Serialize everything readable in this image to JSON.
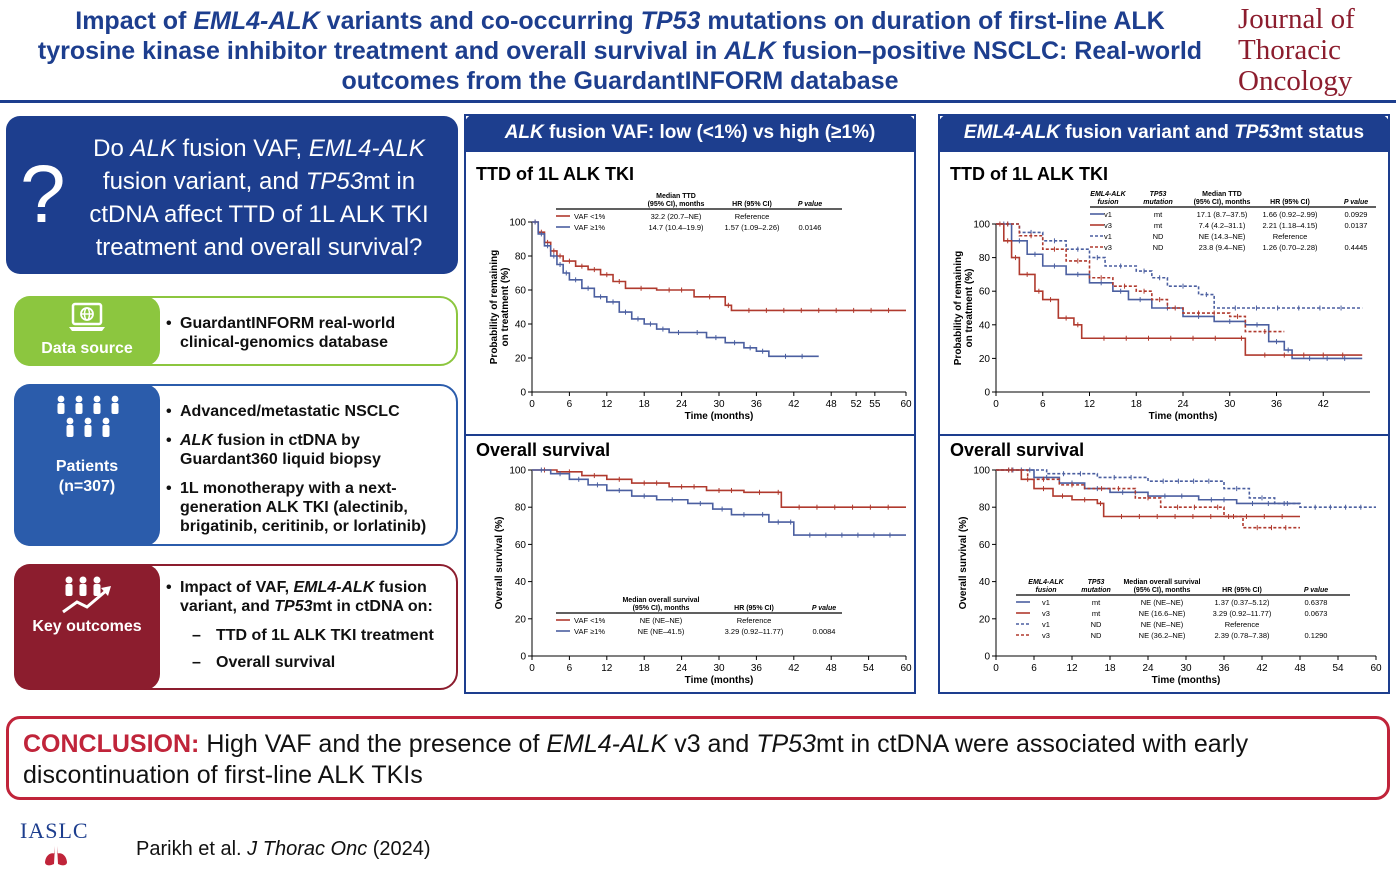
{
  "header": {
    "title_html": "Impact of <i>EML4-ALK</i> variants and co-occurring <i>TP53</i> mutations on duration of first-line ALK tyrosine kinase inhibitor treatment and overall survival in <i>ALK</i> fusion–positive NSCLC: Real-world outcomes from the GuardantINFORM database",
    "journal_lines": [
      "Journal of",
      "Thoracic",
      "Oncology"
    ]
  },
  "question": {
    "mark": "?",
    "text_html": "Do <i>ALK</i> fusion VAF, <i>EML4-ALK</i> fusion variant, and <i>TP53</i>mt in ctDNA affect TTD of 1L ALK TKI treatment and overall survival?"
  },
  "data_source": {
    "label": "Data source",
    "icon": "laptop-globe-icon",
    "bullets": [
      "GuardantINFORM real-world clinical-genomics database"
    ]
  },
  "patients": {
    "label": "Patients",
    "count": "(n=307)",
    "icon": "people-group-icon",
    "bullets_html": [
      "Advanced/metastatic NSCLC",
      "<i>ALK</i> fusion in ctDNA by Guardant360 liquid biopsy",
      "1L monotherapy with a next-generation ALK TKI (alectinib, brigatinib, ceritinib, or lorlatinib)"
    ]
  },
  "key_outcomes": {
    "label": "Key outcomes",
    "icon": "people-trend-icon",
    "intro_html": "Impact of VAF, <i>EML4-ALK</i> fusion variant, and <i>TP53</i>mt in ctDNA on:",
    "items": [
      "TTD of 1L ALK TKI treatment",
      "Overall survival"
    ]
  },
  "left_panel": {
    "header_html": "<i>ALK</i> fusion VAF: low (&lt;1%) vs high (≥1%)"
  },
  "right_panel": {
    "header_html": "<i>EML4-ALK</i> fusion variant and <i>TP53</i>mt status"
  },
  "conclusion": {
    "label": "CONCLUSION:",
    "text_html": " High VAF and the presence of <i>EML4-ALK</i> v3 and <i>TP53</i>mt in ctDNA were associated with early discontinuation of first-line ALK TKIs"
  },
  "footer": {
    "logo_text": "IASLC",
    "citation_html": "Parikh et al. <i>J Thorac Onc</i> (2024)"
  },
  "colors": {
    "navy": "#1d3e8e",
    "red": "#b03a2e",
    "blue": "#4b5fa0",
    "green": "#8cc63f",
    "maroon": "#8c1d2e"
  },
  "chart_data": [
    {
      "id": "ttd_vaf",
      "type": "line",
      "title": "TTD of 1L ALK TKI",
      "xlabel": "Time (months)",
      "ylabel": "Probability of remaining on treatment (%)",
      "xticks": [
        0,
        6,
        12,
        18,
        24,
        30,
        36,
        42,
        48,
        52,
        55,
        60
      ],
      "yticks": [
        0,
        20,
        40,
        60,
        80,
        100
      ],
      "xlim": [
        0,
        60
      ],
      "ylim": [
        0,
        100
      ],
      "table": {
        "headers": [
          "",
          "Median TTD (95% CI), months",
          "HR (95% CI)",
          "P value"
        ],
        "rows": [
          [
            "VAF <1%",
            "32.2 (20.7–NE)",
            "Reference",
            ""
          ],
          [
            "VAF ≥1%",
            "14.7 (10.4–19.9)",
            "1.57 (1.09–2.26)",
            "0.0146"
          ]
        ]
      },
      "series": [
        {
          "name": "VAF <1%",
          "color": "#b03a2e",
          "dashed": false,
          "points": [
            [
              0,
              100
            ],
            [
              1,
              94
            ],
            [
              2,
              88
            ],
            [
              3,
              83
            ],
            [
              4,
              80
            ],
            [
              5,
              77
            ],
            [
              7,
              74
            ],
            [
              9,
              72
            ],
            [
              11,
              69
            ],
            [
              13,
              65
            ],
            [
              15,
              61
            ],
            [
              20,
              60
            ],
            [
              26,
              56
            ],
            [
              31,
              51
            ],
            [
              32,
              48
            ],
            [
              60,
              48
            ]
          ]
        },
        {
          "name": "VAF ≥1%",
          "color": "#4b5fa0",
          "dashed": false,
          "points": [
            [
              0,
              100
            ],
            [
              1,
              93
            ],
            [
              2,
              86
            ],
            [
              3,
              80
            ],
            [
              4,
              75
            ],
            [
              5,
              70
            ],
            [
              6,
              66
            ],
            [
              8,
              61
            ],
            [
              10,
              56
            ],
            [
              12,
              53
            ],
            [
              14,
              47
            ],
            [
              16,
              43
            ],
            [
              18,
              40
            ],
            [
              20,
              37
            ],
            [
              22,
              35
            ],
            [
              25,
              35
            ],
            [
              28,
              32
            ],
            [
              31,
              29
            ],
            [
              34,
              26
            ],
            [
              36,
              24
            ],
            [
              38,
              21
            ],
            [
              46,
              21
            ]
          ]
        }
      ]
    },
    {
      "id": "os_vaf",
      "type": "line",
      "title": "Overall survival",
      "xlabel": "Time (months)",
      "ylabel": "Overall survival (%)",
      "xticks": [
        0,
        6,
        12,
        18,
        24,
        30,
        36,
        42,
        48,
        54,
        60
      ],
      "yticks": [
        0,
        20,
        40,
        60,
        80,
        100
      ],
      "xlim": [
        0,
        60
      ],
      "ylim": [
        0,
        100
      ],
      "table": {
        "headers": [
          "",
          "Median overall survival (95% CI), months",
          "HR (95% CI)",
          "P value"
        ],
        "rows": [
          [
            "VAF <1%",
            "NE (NE–NE)",
            "Reference",
            ""
          ],
          [
            "VAF ≥1%",
            "NE (NE–41.5)",
            "3.29 (0.92–11.77)",
            "0.0084"
          ]
        ]
      },
      "series": [
        {
          "name": "VAF <1%",
          "color": "#b03a2e",
          "dashed": false,
          "points": [
            [
              0,
              100
            ],
            [
              4,
              99
            ],
            [
              8,
              97
            ],
            [
              12,
              95
            ],
            [
              16,
              93
            ],
            [
              22,
              91
            ],
            [
              28,
              89
            ],
            [
              34,
              88
            ],
            [
              39,
              88
            ],
            [
              40,
              80
            ],
            [
              60,
              80
            ]
          ]
        },
        {
          "name": "VAF ≥1%",
          "color": "#4b5fa0",
          "dashed": false,
          "points": [
            [
              0,
              100
            ],
            [
              3,
              98
            ],
            [
              6,
              95
            ],
            [
              9,
              92
            ],
            [
              12,
              89
            ],
            [
              16,
              86
            ],
            [
              20,
              84
            ],
            [
              25,
              82
            ],
            [
              29,
              79
            ],
            [
              32,
              76
            ],
            [
              36,
              76
            ],
            [
              38,
              72
            ],
            [
              41,
              72
            ],
            [
              42,
              65
            ],
            [
              60,
              65
            ]
          ]
        }
      ]
    },
    {
      "id": "ttd_variant",
      "type": "line",
      "title": "TTD of 1L ALK TKI",
      "xlabel": "Time (months)",
      "ylabel": "Probability of remaining on treatment (%)",
      "xticks": [
        0,
        6,
        12,
        18,
        24,
        30,
        36,
        42
      ],
      "yticks": [
        0,
        20,
        40,
        60,
        80,
        100
      ],
      "xlim": [
        0,
        48
      ],
      "ylim": [
        0,
        100
      ],
      "table": {
        "headers": [
          "EML4-ALK fusion",
          "TP53 mutation",
          "Median TTD (95% CI), months",
          "HR (95% CI)",
          "P value"
        ],
        "rows": [
          [
            "v1",
            "mt",
            "17.1 (8.7–37.5)",
            "1.66 (0.92–2.99)",
            "0.0929"
          ],
          [
            "v3",
            "mt",
            "7.4 (4.2–31.1)",
            "2.21 (1.18–4.15)",
            "0.0137"
          ],
          [
            "v1",
            "ND",
            "NE (14.3–NE)",
            "Reference",
            ""
          ],
          [
            "v3",
            "ND",
            "23.8 (9.4–NE)",
            "1.26 (0.70–2.28)",
            "0.4445"
          ]
        ]
      },
      "series": [
        {
          "name": "v1 mt",
          "color": "#4b5fa0",
          "dashed": false,
          "points": [
            [
              0,
              100
            ],
            [
              2,
              90
            ],
            [
              4,
              82
            ],
            [
              6,
              75
            ],
            [
              9,
              70
            ],
            [
              12,
              65
            ],
            [
              15,
              60
            ],
            [
              17,
              55
            ],
            [
              20,
              50
            ],
            [
              24,
              45
            ],
            [
              28,
              42
            ],
            [
              32,
              40
            ],
            [
              35,
              30
            ],
            [
              37,
              25
            ],
            [
              38,
              20
            ],
            [
              47,
              20
            ]
          ]
        },
        {
          "name": "v3 mt",
          "color": "#b03a2e",
          "dashed": false,
          "points": [
            [
              0,
              100
            ],
            [
              1,
              90
            ],
            [
              2,
              80
            ],
            [
              3,
              70
            ],
            [
              5,
              60
            ],
            [
              6,
              55
            ],
            [
              8,
              44
            ],
            [
              10,
              40
            ],
            [
              11,
              32
            ],
            [
              31,
              32
            ],
            [
              32,
              22
            ],
            [
              47,
              22
            ]
          ]
        },
        {
          "name": "v1 ND",
          "color": "#4b5fa0",
          "dashed": true,
          "points": [
            [
              0,
              100
            ],
            [
              3,
              95
            ],
            [
              6,
              90
            ],
            [
              9,
              85
            ],
            [
              12,
              80
            ],
            [
              14,
              75
            ],
            [
              18,
              72
            ],
            [
              20,
              68
            ],
            [
              22,
              63
            ],
            [
              26,
              58
            ],
            [
              28,
              50
            ],
            [
              47,
              50
            ]
          ]
        },
        {
          "name": "v3 ND",
          "color": "#b03a2e",
          "dashed": true,
          "points": [
            [
              0,
              100
            ],
            [
              3,
              93
            ],
            [
              6,
              85
            ],
            [
              9,
              78
            ],
            [
              12,
              68
            ],
            [
              15,
              63
            ],
            [
              18,
              60
            ],
            [
              20,
              55
            ],
            [
              22,
              50
            ],
            [
              24,
              47
            ],
            [
              30,
              45
            ],
            [
              32,
              36
            ],
            [
              37,
              36
            ]
          ]
        }
      ]
    },
    {
      "id": "os_variant",
      "type": "line",
      "title": "Overall survival",
      "xlabel": "Time (months)",
      "ylabel": "Overall survival (%)",
      "xticks": [
        0,
        6,
        12,
        18,
        24,
        30,
        36,
        42,
        48,
        54,
        60
      ],
      "yticks": [
        0,
        20,
        40,
        60,
        80,
        100
      ],
      "xlim": [
        0,
        60
      ],
      "ylim": [
        0,
        100
      ],
      "table": {
        "headers": [
          "EML4-ALK fusion",
          "TP53 mutation",
          "Median overall survival (95% CI), months",
          "HR (95% CI)",
          "P value"
        ],
        "rows": [
          [
            "v1",
            "mt",
            "NE (NE–NE)",
            "1.37 (0.37–5.12)",
            "0.6378"
          ],
          [
            "v3",
            "mt",
            "NE (16.6–NE)",
            "3.29 (0.92–11.77)",
            "0.0673"
          ],
          [
            "v1",
            "ND",
            "NE (NE–NE)",
            "Reference",
            ""
          ],
          [
            "v3",
            "ND",
            "NE (36.2–NE)",
            "2.39 (0.78–7.38)",
            "0.1290"
          ]
        ]
      },
      "series": [
        {
          "name": "v1 mt",
          "color": "#4b5fa0",
          "dashed": false,
          "points": [
            [
              0,
              100
            ],
            [
              6,
              96
            ],
            [
              10,
              93
            ],
            [
              14,
              90
            ],
            [
              18,
              88
            ],
            [
              24,
              86
            ],
            [
              32,
              84
            ],
            [
              38,
              82
            ],
            [
              48,
              82
            ]
          ]
        },
        {
          "name": "v3 mt",
          "color": "#b03a2e",
          "dashed": false,
          "points": [
            [
              0,
              100
            ],
            [
              4,
              95
            ],
            [
              6,
              90
            ],
            [
              9,
              86
            ],
            [
              12,
              84
            ],
            [
              16,
              82
            ],
            [
              17,
              75
            ],
            [
              48,
              75
            ]
          ]
        },
        {
          "name": "v1 ND",
          "color": "#4b5fa0",
          "dashed": true,
          "points": [
            [
              0,
              100
            ],
            [
              8,
              98
            ],
            [
              16,
              96
            ],
            [
              24,
              94
            ],
            [
              36,
              90
            ],
            [
              40,
              85
            ],
            [
              44,
              82
            ],
            [
              48,
              80
            ],
            [
              60,
              80
            ]
          ]
        },
        {
          "name": "v3 ND",
          "color": "#b03a2e",
          "dashed": true,
          "points": [
            [
              0,
              100
            ],
            [
              5,
              95
            ],
            [
              10,
              92
            ],
            [
              14,
              90
            ],
            [
              22,
              85
            ],
            [
              26,
              80
            ],
            [
              34,
              80
            ],
            [
              36,
              75
            ],
            [
              39,
              69
            ],
            [
              48,
              69
            ]
          ]
        }
      ]
    }
  ]
}
